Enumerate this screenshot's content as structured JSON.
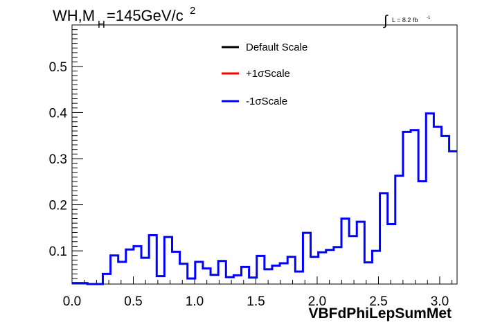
{
  "chart_data": {
    "type": "histogram",
    "title_main": "WH,M",
    "title_sub": "H",
    "title_rest": "=145GeV/c",
    "title_sup": "2",
    "lumi_integral": "∫",
    "lumi_text": "L = 8.2 fb",
    "lumi_sup": "-1",
    "xlabel": "VBFdPhiLepSumMet",
    "xlim": [
      0.0,
      3.1416
    ],
    "ylim": [
      0.028,
      0.59
    ],
    "x_ticks": [
      0.0,
      0.5,
      1.0,
      1.5,
      2.0,
      2.5,
      3.0
    ],
    "x_tick_labels": [
      "0.0",
      "0.5",
      "1.0",
      "1.5",
      "2.0",
      "2.5",
      "3.0"
    ],
    "y_ticks": [
      0.1,
      0.2,
      0.3,
      0.4,
      0.5
    ],
    "y_tick_labels": [
      "0.1",
      "0.2",
      "0.3",
      "0.4",
      "0.5"
    ],
    "bin_edges_start": 0.0,
    "bin_width": 0.0628,
    "series": [
      {
        "name": "Default Scale",
        "color": "#000000",
        "visible_in_plot": false
      },
      {
        "name": "+1σScale",
        "color": "#ff0000",
        "visible_in_plot": false
      },
      {
        "name": "-1σScale",
        "color": "#0000ff",
        "visible_in_plot": true,
        "values": [
          0.03,
          0.03,
          0.028,
          0.028,
          0.05,
          0.09,
          0.076,
          0.103,
          0.11,
          0.085,
          0.134,
          0.045,
          0.13,
          0.098,
          0.072,
          0.04,
          0.076,
          0.062,
          0.048,
          0.078,
          0.043,
          0.047,
          0.065,
          0.042,
          0.089,
          0.06,
          0.068,
          0.073,
          0.087,
          0.055,
          0.139,
          0.087,
          0.097,
          0.102,
          0.108,
          0.17,
          0.132,
          0.163,
          0.075,
          0.1,
          0.225,
          0.158,
          0.263,
          0.358,
          0.362,
          0.251,
          0.398,
          0.369,
          0.349,
          0.316
        ]
      }
    ],
    "legend": {
      "placement": "top-center",
      "entries": [
        "Default Scale",
        "+1σScale",
        "-1σScale"
      ]
    }
  }
}
